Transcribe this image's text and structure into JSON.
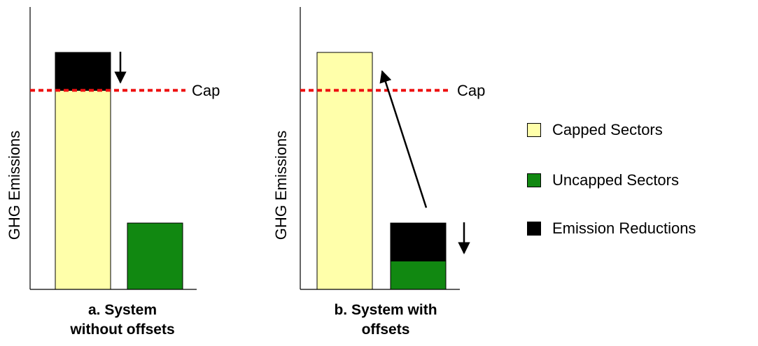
{
  "colors": {
    "capped": "#ffffaa",
    "uncapped": "#118811",
    "reductions": "#000000",
    "cap_line": "#ee1111",
    "axis": "#000000"
  },
  "legend": [
    {
      "label": "Capped Sectors",
      "color": "#ffffaa"
    },
    {
      "label": "Uncapped Sectors",
      "color": "#118811"
    },
    {
      "label": "Emission Reductions",
      "color": "#000000"
    }
  ],
  "chart_data": [
    {
      "type": "bar",
      "stacked": true,
      "title": "a. System without offsets",
      "title_lines": [
        "a. System",
        "without offsets"
      ],
      "xlabel": "",
      "ylabel": "GHG Emissions",
      "ylim": [
        0,
        100
      ],
      "categories": [
        "Capped Sectors",
        "Uncapped Sectors"
      ],
      "series": [
        {
          "name": "Capped Sectors",
          "values": [
            84,
            0
          ]
        },
        {
          "name": "Uncapped Sectors",
          "values": [
            0,
            28
          ]
        },
        {
          "name": "Emission Reductions",
          "values": [
            16,
            0
          ]
        }
      ],
      "cap": {
        "value": 84,
        "label": "Cap"
      },
      "annotations": [
        {
          "type": "down-arrow",
          "bar": 0
        }
      ]
    },
    {
      "type": "bar",
      "stacked": true,
      "title": "b. System with offsets",
      "title_lines": [
        "b. System with",
        "offsets"
      ],
      "xlabel": "",
      "ylabel": "GHG Emissions",
      "ylim": [
        0,
        100
      ],
      "categories": [
        "Capped Sectors",
        "Uncapped Sectors"
      ],
      "series": [
        {
          "name": "Capped Sectors",
          "values": [
            100,
            0
          ]
        },
        {
          "name": "Uncapped Sectors",
          "values": [
            0,
            12
          ]
        },
        {
          "name": "Emission Reductions",
          "values": [
            0,
            16
          ]
        }
      ],
      "cap": {
        "value": 84,
        "label": "Cap"
      },
      "annotations": [
        {
          "type": "down-arrow",
          "bar": 1
        },
        {
          "type": "transfer-arrow",
          "from": 1,
          "to": 0
        }
      ]
    }
  ]
}
